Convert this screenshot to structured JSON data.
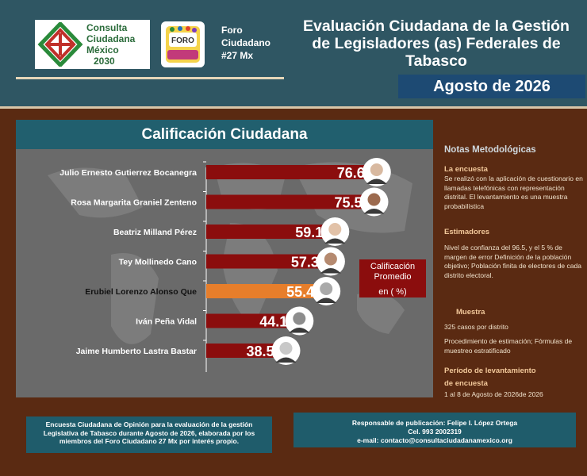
{
  "header": {
    "logo_lines": [
      "Consulta",
      "Ciudadana",
      "México",
      "2030"
    ],
    "forum_badge": "FORO",
    "forum_lines": [
      "Foro",
      "Ciudadano",
      "#27 Mx"
    ],
    "title_lines": [
      "Evaluación Ciudadana de la Gestión",
      "de Legisladores (as) Federales de",
      "Tabasco"
    ],
    "date": "Agosto de 2026"
  },
  "legend": {
    "lines": [
      "Calificación",
      "Promedio"
    ],
    "unit": "en ( %)"
  },
  "chart_data": {
    "type": "bar",
    "orientation": "horizontal",
    "title": "Calificación Ciudadana",
    "categories": [
      "Julio Ernesto Gutierrez Bocanegra",
      "Rosa Margarita Graniel Zenteno",
      "Beatriz Milland Pérez",
      "Tey Mollinedo Cano",
      "Erubiel Lorenzo Alonso Que",
      "Iván Peña Vidal",
      "Jaime Humberto Lastra Bastar"
    ],
    "values": [
      76.6,
      75.5,
      59.1,
      57.3,
      55.4,
      44.1,
      38.5
    ],
    "value_labels": [
      "76.6",
      "75.5",
      "59.1",
      "57.3",
      "55.4",
      "44.1",
      "38.5"
    ],
    "highlight_index": 4,
    "colors": {
      "bar": "#8b0d0d",
      "highlight": "#e77e2b",
      "panel": "#6a6a6a",
      "title_bar": "#215f6e"
    },
    "xlim": [
      0,
      100
    ],
    "grid": false,
    "legend": "right"
  },
  "notes": {
    "title": "Notas Metodológicas",
    "survey_head": "La encuesta",
    "survey_text": " Se realizó con la aplicación de cuestionario en  llamadas telefónicas con representación distrital. El levantamiento es una muestra probabilística",
    "estimators_head": "Estimadores",
    "estimators_text": "Nivel de confianza del 96.5, y el 5 % de margen de error Definición de la población objetivo; Población finita de electores de cada distrito electoral.",
    "sample_head": "Muestra",
    "sample_text1": "325 casos por distrito",
    "sample_text2": "Procedimiento de estimación; Fórmulas de muestreo estratificado",
    "period_head_1": "Período de levantamiento",
    "period_head_2": "de encuesta",
    "period_text": "1 al 8 de Agosto de 2026de 2026"
  },
  "footer": {
    "left": "Encuesta Ciudadana de Opinión para la evaluación de la gestión Legislativa de Tabasco durante Agosto de 2026, elaborada por los miembros del Foro Ciudadano 27 Mx por interés propio.",
    "right_lines": [
      "Responsable de publicación: Felipe I. López Ortega",
      "Cel. 993 2002319",
      "e-mail: contacto@consultaciudadanamexico.org"
    ]
  }
}
